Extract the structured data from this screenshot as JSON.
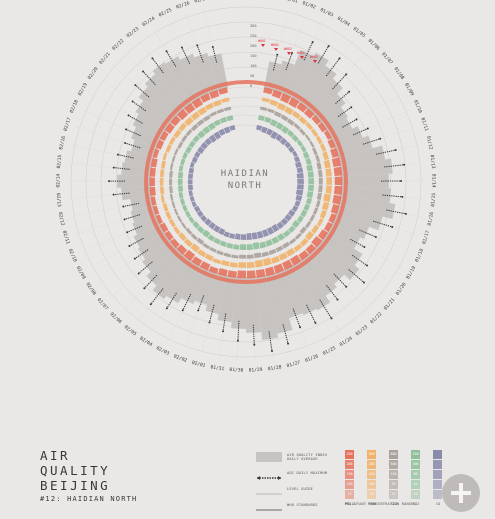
{
  "title": {
    "line1": "AIR",
    "line2": "QUALITY",
    "line3": "BEIJING",
    "subtitle": "#12: HAIDIAN NORTH"
  },
  "center_label": {
    "line1": "HAIDIAN",
    "line2": "NORTH"
  },
  "legend": {
    "items": [
      {
        "key": "aqi",
        "label1": "AIR QUALITY INDEX",
        "label2": "DAILY AVERAGE"
      },
      {
        "key": "max",
        "label1": "AQI DAILY MAXIMUM",
        "label2": ""
      },
      {
        "key": "level",
        "label1": "LEVEL GUIDE",
        "label2": ""
      },
      {
        "key": "who",
        "label1": "WHO STANDARDS",
        "label2": ""
      }
    ]
  },
  "scale": {
    "title": "POLLUTANT CONCENTRATION RANGE",
    "columns": [
      {
        "name": "PM2.5",
        "color": "#e5735e",
        "labels": [
          "250",
          "200",
          "150",
          "100",
          "75"
        ]
      },
      {
        "name": "PM10",
        "color": "#f0b26a",
        "labels": [
          "350",
          "250",
          "150",
          "100",
          "50"
        ]
      },
      {
        "name": "SO2",
        "color": "#a9a19b",
        "labels": [
          "800",
          "500",
          "150",
          "50",
          "25"
        ]
      },
      {
        "name": "NO2",
        "color": "#8fc09b",
        "labels": [
          "150",
          "100",
          "80",
          "40",
          "20"
        ]
      },
      {
        "name": "CO",
        "color": "#8a8aab",
        "labels": [
          "",
          "",
          "",
          "",
          ""
        ]
      }
    ]
  },
  "colors": {
    "pm25": "#e5735e",
    "pm10": "#f0b26a",
    "so2": "#a9a19b",
    "no2": "#8fc09b",
    "co": "#8a8aab",
    "aqi_fill": "#c6c3c1",
    "alert": "#e0303a"
  },
  "chart_data": {
    "type": "radial-bar",
    "start_label": "01/01",
    "dates": [
      "01/01",
      "01/02",
      "01/03",
      "01/04",
      "01/05",
      "01/06",
      "01/07",
      "01/08",
      "01/09",
      "01/10",
      "01/11",
      "01/12",
      "01/13",
      "01/14",
      "01/15",
      "01/16",
      "01/17",
      "01/18",
      "01/19",
      "01/20",
      "01/21",
      "01/22",
      "01/23",
      "01/24",
      "01/25",
      "01/26",
      "01/27",
      "01/28",
      "01/29",
      "01/30",
      "01/31",
      "02/01",
      "02/02",
      "02/03",
      "02/04",
      "02/05",
      "02/06",
      "02/07",
      "02/08",
      "02/09",
      "02/10",
      "02/11",
      "02/12",
      "02/13",
      "02/14",
      "02/15",
      "02/16",
      "02/17",
      "02/18",
      "02/19",
      "02/20",
      "02/21",
      "02/22",
      "02/23",
      "02/24",
      "02/25",
      "02/26",
      "02/27"
    ],
    "aqi_ticks": [
      "0",
      "50",
      "100",
      "150",
      "200",
      "250",
      "300"
    ],
    "aqi_daily_average": [
      140,
      160,
      240,
      260,
      230,
      200,
      160,
      130,
      120,
      150,
      180,
      230,
      260,
      240,
      250,
      280,
      230,
      180,
      160,
      210,
      240,
      200,
      220,
      260,
      250,
      240,
      300,
      320,
      280,
      260,
      230,
      200,
      170,
      190,
      220,
      240,
      210,
      180,
      160,
      150,
      130,
      120,
      110,
      150,
      170,
      150,
      140,
      120,
      140,
      160,
      180,
      210,
      230,
      250,
      240,
      220,
      200,
      180
    ],
    "aqi_daily_maximum": [
      180,
      210,
      300,
      320,
      300,
      260,
      210,
      170,
      160,
      190,
      230,
      290,
      320,
      300,
      310,
      340,
      290,
      230,
      200,
      260,
      300,
      250,
      270,
      330,
      310,
      300,
      360,
      380,
      340,
      320,
      280,
      250,
      210,
      240,
      270,
      300,
      260,
      230,
      200,
      190,
      170,
      160,
      150,
      190,
      210,
      190,
      180,
      160,
      180,
      200,
      220,
      260,
      280,
      300,
      290,
      270,
      250,
      220
    ],
    "pm25": [
      2,
      3,
      4,
      4,
      3,
      3,
      2,
      2,
      1,
      2,
      3,
      4,
      4,
      4,
      4,
      4,
      3,
      2,
      2,
      3,
      4,
      3,
      3,
      4,
      4,
      4,
      4,
      4,
      4,
      4,
      3,
      3,
      2,
      3,
      3,
      4,
      3,
      2,
      2,
      2,
      1,
      1,
      1,
      2,
      2,
      2,
      2,
      1,
      2,
      2,
      3,
      3,
      4,
      4,
      4,
      3,
      3,
      2
    ],
    "pm10": [
      1,
      2,
      3,
      3,
      2,
      2,
      1,
      1,
      1,
      1,
      2,
      3,
      3,
      3,
      3,
      4,
      3,
      2,
      1,
      2,
      3,
      2,
      2,
      3,
      3,
      3,
      4,
      4,
      3,
      3,
      2,
      2,
      1,
      2,
      2,
      3,
      2,
      2,
      1,
      1,
      1,
      1,
      0,
      1,
      1,
      1,
      1,
      0,
      1,
      1,
      2,
      2,
      3,
      3,
      3,
      2,
      2,
      1
    ],
    "so2": [
      1,
      1,
      2,
      2,
      2,
      1,
      1,
      0,
      0,
      1,
      1,
      2,
      2,
      2,
      2,
      2,
      1,
      1,
      1,
      1,
      2,
      1,
      1,
      2,
      2,
      2,
      2,
      3,
      2,
      2,
      1,
      1,
      1,
      1,
      1,
      2,
      1,
      1,
      0,
      0,
      0,
      0,
      0,
      1,
      1,
      1,
      0,
      0,
      0,
      1,
      1,
      1,
      2,
      2,
      2,
      1,
      1,
      1
    ],
    "no2": [
      2,
      2,
      3,
      3,
      3,
      2,
      2,
      1,
      1,
      2,
      2,
      3,
      3,
      3,
      3,
      3,
      2,
      2,
      2,
      2,
      3,
      2,
      2,
      3,
      3,
      3,
      3,
      4,
      3,
      3,
      2,
      2,
      2,
      2,
      2,
      3,
      2,
      2,
      1,
      1,
      1,
      1,
      1,
      2,
      2,
      2,
      1,
      1,
      1,
      2,
      2,
      2,
      3,
      3,
      3,
      2,
      2,
      2
    ],
    "co": [
      2,
      3,
      3,
      4,
      3,
      3,
      2,
      2,
      1,
      2,
      3,
      3,
      4,
      4,
      4,
      4,
      3,
      2,
      2,
      3,
      3,
      3,
      3,
      4,
      4,
      4,
      4,
      4,
      4,
      3,
      3,
      2,
      2,
      3,
      3,
      3,
      3,
      2,
      2,
      2,
      1,
      1,
      1,
      2,
      2,
      2,
      2,
      1,
      2,
      2,
      3,
      3,
      3,
      4,
      4,
      3,
      3,
      2
    ],
    "who_alerts": [
      "WHO1",
      "WHO2",
      "WHO3",
      "WHO4",
      "WHO5"
    ]
  }
}
